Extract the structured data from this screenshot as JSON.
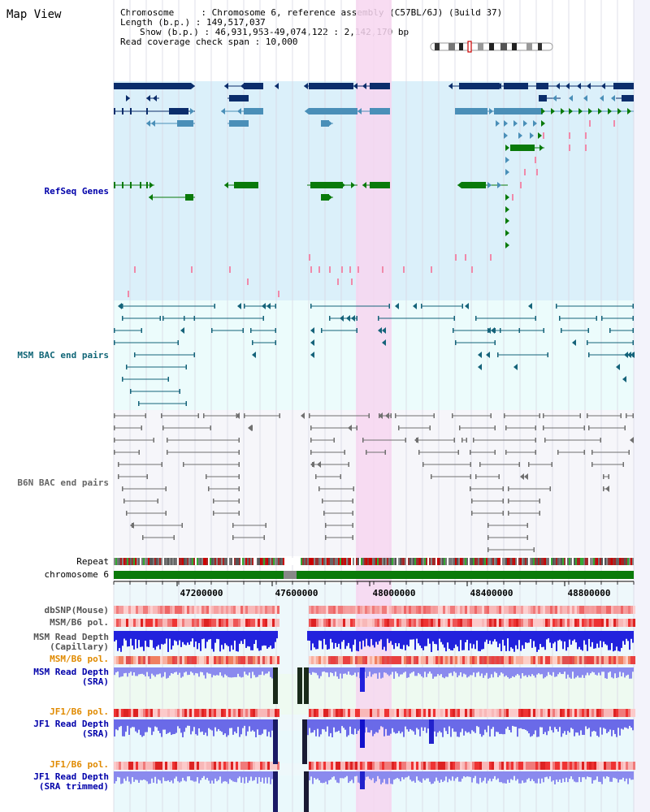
{
  "page_title": "Map View",
  "info": {
    "chromosome_line": "Chromosome     : Chromosome 6, reference assembly (C57BL/6J) (Build 37)",
    "length_line": "Length (b.p.) : 149,517,037",
    "show_line": "Show (b.p.) : 46,931,953-49,074,122 : 2,142,170 bp",
    "coverage_line": "Read coverage check span : 10,000"
  },
  "tracks": {
    "refseq": "RefSeq Genes",
    "msm_bac": "MSM BAC end pairs",
    "b6n_bac": "B6N BAC end pairs",
    "repeat": "Repeat",
    "chromosome": "chromosome 6",
    "dbsnp": "dbSNP(Mouse)",
    "msm_b6_pol1": "MSM/B6 pol.",
    "msm_depth_cap_1": "MSM Read Depth",
    "msm_depth_cap_2": "(Capillary)",
    "msm_b6_pol2": "MSM/B6 pol.",
    "msm_depth_sra_1": "MSM Read Depth",
    "msm_depth_sra_2": "(SRA)",
    "jf1_b6_pol1": "JF1/B6 pol.",
    "jf1_depth_sra_1": "JF1 Read Depth",
    "jf1_depth_sra_2": "(SRA)",
    "jf1_b6_pol2": "JF1/B6 pol.",
    "jf1_depth_trim_1": "JF1 Read Depth",
    "jf1_depth_trim_2": "(SRA trimmed)"
  },
  "axis": {
    "ticks": [
      "47200000",
      "47600000",
      "48000000",
      "48400000",
      "48800000"
    ]
  },
  "colors": {
    "refseq_bg": "#dbf0fa",
    "msm_bg": "#ecfcfc",
    "b6n_bg": "#f6f6fa",
    "highlight": "#f7d6f0",
    "dark_navy": "#0b2d6b",
    "steel_blue": "#4a8fb8",
    "green": "#0a7a0a",
    "pink": "#f08aaa",
    "teal": "#15637a",
    "gray": "#707070",
    "label_blue": "#0000aa",
    "label_teal": "#116677",
    "label_orange": "#e08a00"
  }
}
